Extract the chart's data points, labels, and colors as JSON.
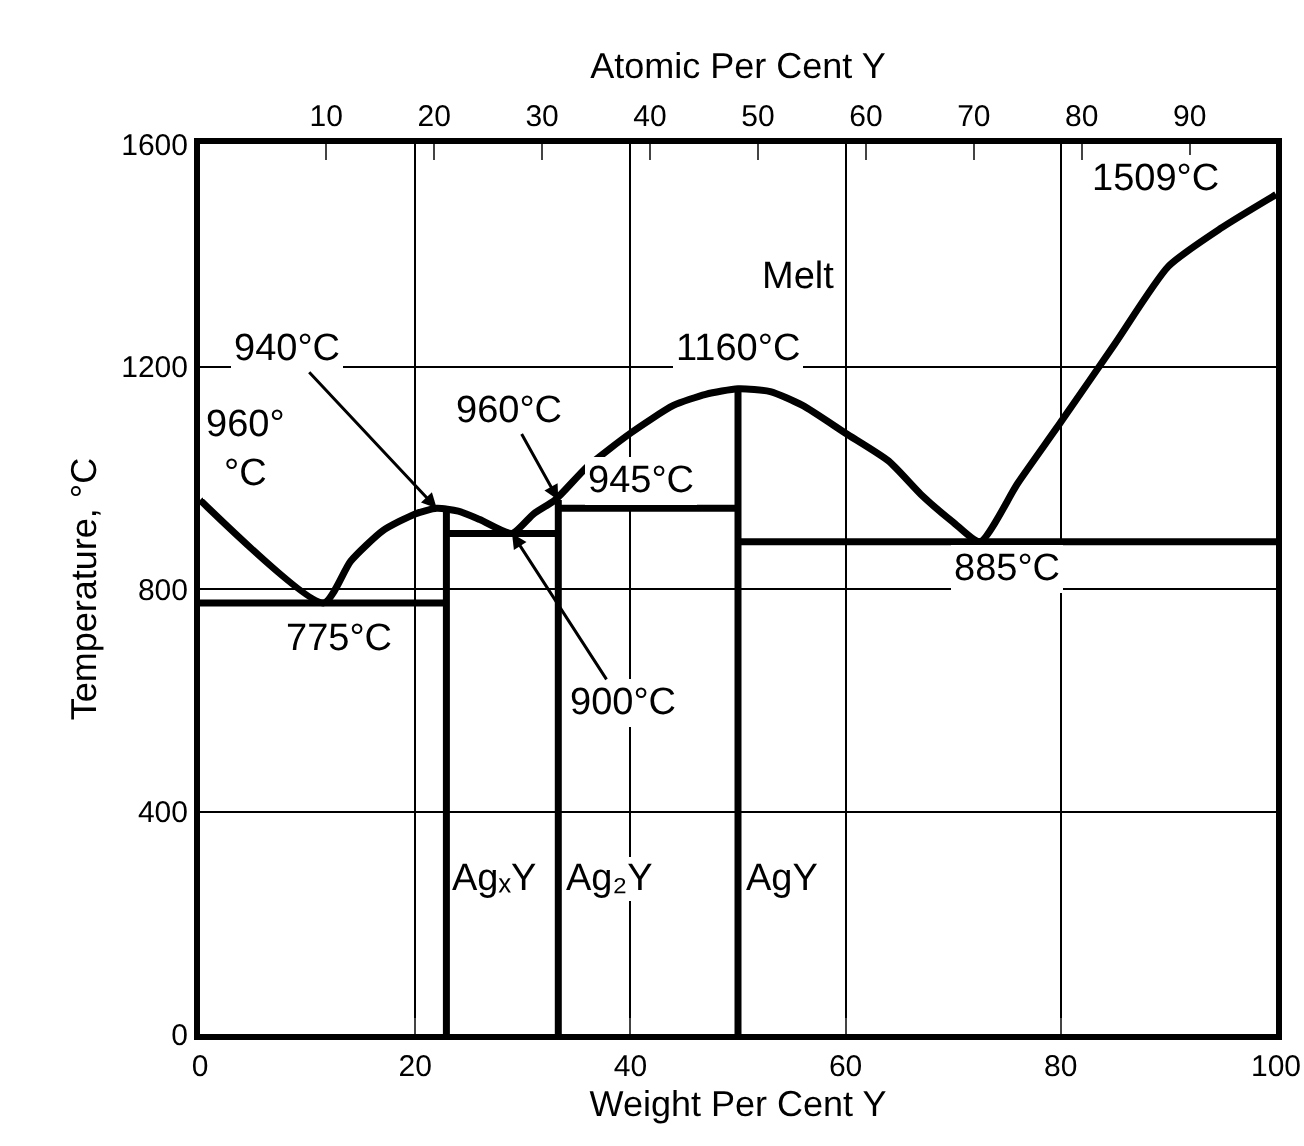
{
  "chart_data": {
    "type": "line",
    "xlabel": "Weight Per Cent Y",
    "ylabel": "Temperature, °C",
    "x2label": "Atomic Per Cent Y",
    "xlim": [
      0,
      100
    ],
    "xticks": [
      0,
      20,
      40,
      60,
      80,
      100
    ],
    "ylim": [
      0,
      1600
    ],
    "yticks": [
      0,
      400,
      800,
      1200,
      1600
    ],
    "x2lim": [
      -1.7,
      98
    ],
    "x2ticks": [
      10,
      20,
      30,
      40,
      50,
      60,
      70,
      80,
      90
    ],
    "grid": true,
    "marker": "none",
    "line_style": "solid",
    "series": [
      {
        "color": "#000000",
        "x": [
          0,
          11.5,
          14,
          17,
          20,
          22,
          24,
          26,
          29,
          31,
          33,
          36,
          40,
          44,
          47,
          50,
          53,
          56,
          60,
          64,
          67,
          70,
          72.5,
          76,
          80,
          85,
          90,
          95,
          100
        ],
        "values": [
          960,
          775,
          850,
          905,
          935,
          945,
          940,
          925,
          900,
          935,
          960,
          1020,
          1080,
          1130,
          1150,
          1160,
          1155,
          1130,
          1080,
          1030,
          970,
          920,
          885,
          990,
          1100,
          1240,
          1380,
          1450,
          1509
        ]
      },
      {
        "color": "#000000",
        "x": [
          0,
          22.9
        ],
        "values": [
          775,
          775
        ]
      },
      {
        "color": "#000000",
        "x": [
          22.9,
          33.3
        ],
        "values": [
          900,
          900
        ]
      },
      {
        "color": "#000000",
        "x": [
          33.3,
          50
        ],
        "values": [
          945,
          945
        ]
      },
      {
        "color": "#000000",
        "x": [
          50,
          100
        ],
        "values": [
          885,
          885
        ]
      },
      {
        "color": "#000000",
        "x": [
          22.9,
          22.9
        ],
        "values": [
          0,
          945
        ]
      },
      {
        "color": "#000000",
        "x": [
          33.3,
          33.3
        ],
        "values": [
          0,
          960
        ]
      },
      {
        "color": "#000000",
        "x": [
          50,
          50
        ],
        "values": [
          0,
          1160
        ]
      }
    ],
    "annotations": [
      {
        "text": "940°C",
        "x": 22,
        "y": 945
      },
      {
        "text": "960°C",
        "x": 33.3,
        "y": 960
      },
      {
        "text": "900°C",
        "x": 29,
        "y": 900
      },
      {
        "text": "1160°C",
        "x": 50,
        "y": 1160
      },
      {
        "text": "1509°C",
        "x": 100,
        "y": 1509
      },
      {
        "text": "960°\n°C",
        "x": 0,
        "y": 960
      },
      {
        "text": "775°C",
        "x": 11.5,
        "y": 775
      },
      {
        "text": "945°C",
        "x": 41,
        "y": 945
      },
      {
        "text": "885°C",
        "x": 75,
        "y": 885
      },
      "Melt",
      "AgₓY",
      "Ag₂Y",
      "AgY"
    ]
  }
}
